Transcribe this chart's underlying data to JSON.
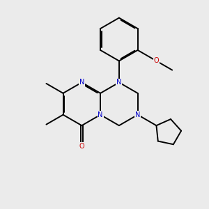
{
  "bg_color": "#ebebeb",
  "bond_color": "#000000",
  "n_color": "#0000cc",
  "o_color": "#cc0000",
  "lw": 1.4,
  "dbo": 0.055,
  "fs": 7.0,
  "xlim": [
    0,
    10
  ],
  "ylim": [
    0,
    10
  ]
}
